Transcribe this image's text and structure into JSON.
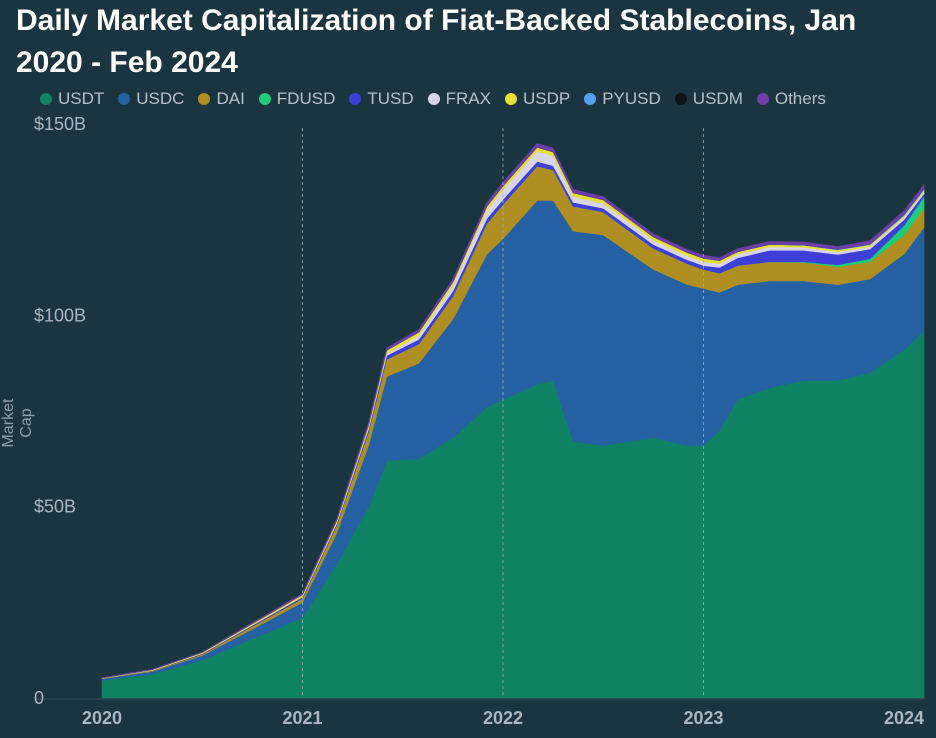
{
  "title": "Daily Market Capitalization of Fiat-Backed Stablecoins, Jan 2020 - Feb 2024",
  "colors": {
    "background": "#1b3540"
  },
  "chart_data": {
    "type": "area",
    "stacked": true,
    "title": "Daily Market Capitalization of Fiat-Backed Stablecoins, Jan 2020 - Feb 2024",
    "xlabel": "",
    "ylabel": "Market Cap",
    "ylim": [
      0,
      150
    ],
    "unit": "$B",
    "yticks": [
      {
        "value": 0,
        "label": "0"
      },
      {
        "value": 50,
        "label": "$50B"
      },
      {
        "value": 100,
        "label": "$100B"
      },
      {
        "value": 150,
        "label": "$150B"
      }
    ],
    "xticks": [
      {
        "value": 2020.0,
        "label": "2020"
      },
      {
        "value": 2021.0,
        "label": "2021"
      },
      {
        "value": 2022.0,
        "label": "2022"
      },
      {
        "value": 2023.0,
        "label": "2023"
      },
      {
        "value": 2024.0,
        "label": "2024"
      }
    ],
    "xlim": [
      2020.0,
      2024.1
    ],
    "grid": "vertical dashed at year boundaries",
    "legend_position": "top",
    "x": [
      2020.0,
      2020.25,
      2020.5,
      2020.75,
      2021.0,
      2021.17,
      2021.33,
      2021.42,
      2021.58,
      2021.75,
      2021.92,
      2022.0,
      2022.17,
      2022.25,
      2022.35,
      2022.5,
      2022.75,
      2022.92,
      2023.0,
      2023.08,
      2023.17,
      2023.33,
      2023.5,
      2023.67,
      2023.83,
      2024.0,
      2024.1
    ],
    "series": [
      {
        "name": "USDT",
        "color": "#0e8262",
        "values": [
          4.6,
          6.2,
          9.9,
          15.5,
          21.0,
          35.0,
          50.0,
          62.0,
          62.5,
          68.0,
          76.0,
          78.0,
          82.0,
          83.0,
          67.0,
          66.0,
          68.0,
          66.0,
          66.0,
          70.0,
          78.0,
          81.0,
          83.0,
          83.0,
          85.0,
          91.0,
          96.0
        ]
      },
      {
        "name": "USDC",
        "color": "#2561a2",
        "values": [
          0.4,
          0.7,
          1.2,
          2.5,
          4.0,
          8.0,
          16.0,
          22.0,
          25.0,
          31.0,
          40.0,
          42.0,
          48.0,
          47.0,
          55.0,
          55.0,
          44.0,
          42.0,
          41.0,
          36.0,
          30.0,
          28.0,
          26.0,
          25.0,
          24.5,
          25.0,
          27.0
        ]
      },
      {
        "name": "DAI",
        "color": "#b08f22",
        "values": [
          0.1,
          0.2,
          0.3,
          0.7,
          1.0,
          2.0,
          3.5,
          4.5,
          5.0,
          6.0,
          8.0,
          9.0,
          9.0,
          8.0,
          6.5,
          6.0,
          5.5,
          5.5,
          5.0,
          5.0,
          5.0,
          5.0,
          4.8,
          4.7,
          4.5,
          5.0,
          5.0
        ]
      },
      {
        "name": "FDUSD",
        "color": "#1ccc7a",
        "values": [
          0,
          0,
          0,
          0,
          0,
          0,
          0,
          0,
          0,
          0,
          0,
          0,
          0,
          0,
          0,
          0,
          0,
          0,
          0,
          0,
          0,
          0,
          0.2,
          0.5,
          0.8,
          2.5,
          3.0
        ]
      },
      {
        "name": "TUSD",
        "color": "#3d3fd8",
        "values": [
          0.05,
          0.1,
          0.2,
          0.3,
          0.4,
          0.5,
          0.8,
          1.0,
          1.2,
          1.3,
          1.3,
          1.3,
          1.2,
          1.1,
          1.0,
          1.0,
          1.0,
          1.0,
          1.0,
          1.5,
          2.0,
          3.0,
          3.0,
          2.7,
          2.5,
          1.5,
          0.8
        ]
      },
      {
        "name": "FRAX",
        "color": "#d8d4ec",
        "values": [
          0,
          0,
          0,
          0.05,
          0.1,
          0.2,
          0.3,
          0.5,
          1.0,
          1.5,
          2.2,
          2.5,
          2.7,
          2.6,
          1.5,
          1.3,
          1.1,
          1.0,
          1.0,
          1.0,
          1.0,
          0.9,
          0.8,
          0.7,
          0.7,
          0.6,
          0.6
        ]
      },
      {
        "name": "USDP",
        "color": "#e6df36",
        "values": [
          0.1,
          0.2,
          0.3,
          0.4,
          0.5,
          0.6,
          0.8,
          0.9,
          0.9,
          0.9,
          1.0,
          1.0,
          1.0,
          1.0,
          1.0,
          0.9,
          0.9,
          0.9,
          0.9,
          0.8,
          0.6,
          0.6,
          0.5,
          0.5,
          0.4,
          0.4,
          0.4
        ]
      },
      {
        "name": "PYUSD",
        "color": "#52a2f0",
        "values": [
          0,
          0,
          0,
          0,
          0,
          0,
          0,
          0,
          0,
          0,
          0,
          0,
          0,
          0,
          0,
          0,
          0,
          0,
          0,
          0,
          0,
          0,
          0.05,
          0.1,
          0.2,
          0.3,
          0.3
        ]
      },
      {
        "name": "USDM",
        "color": "#0c1417",
        "values": [
          0,
          0,
          0,
          0,
          0,
          0,
          0,
          0,
          0,
          0,
          0,
          0,
          0,
          0,
          0,
          0,
          0,
          0,
          0,
          0,
          0,
          0,
          0,
          0,
          0,
          0.05,
          0.1
        ]
      },
      {
        "name": "Others",
        "color": "#6c3fa8",
        "values": [
          0.05,
          0.1,
          0.1,
          0.2,
          0.3,
          0.4,
          0.5,
          0.6,
          0.7,
          0.8,
          0.9,
          1.0,
          1.0,
          1.0,
          0.9,
          0.8,
          0.8,
          0.8,
          0.8,
          0.8,
          0.8,
          0.8,
          0.8,
          0.8,
          0.9,
          1.0,
          1.0
        ]
      }
    ]
  }
}
